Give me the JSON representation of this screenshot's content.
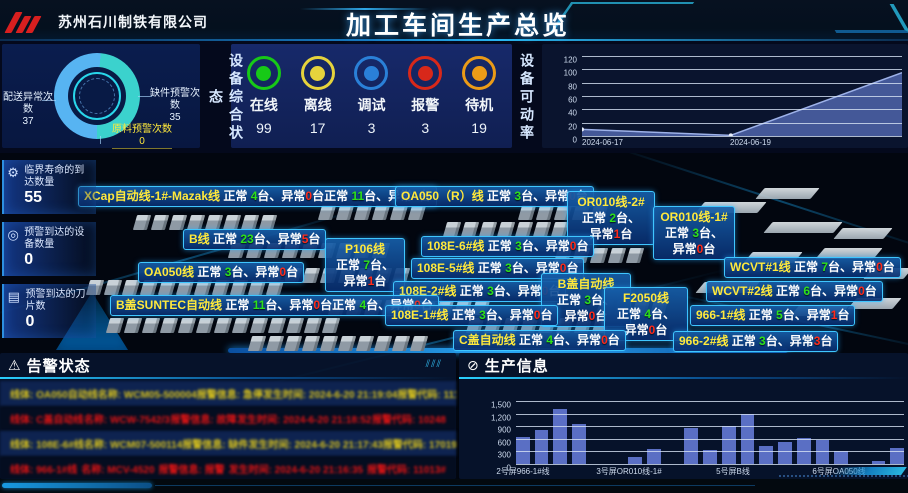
{
  "header": {
    "company": "苏州石川制铁有限公司",
    "title": "加工车间生产总览"
  },
  "equipment_status": {
    "panel_title": "设备综合状态",
    "donut": {
      "chart_data": {
        "type": "pie",
        "slices": [
          {
            "label": "配送异常次数",
            "value": 37,
            "color": "#57b4f2"
          },
          {
            "label": "缺件预警次数",
            "value": 35,
            "color": "#3bd2cd"
          },
          {
            "label": "原料预警次数",
            "value": 0,
            "color": "#ffe93c"
          }
        ]
      },
      "left_label": "配送异常次数",
      "left_value": 37,
      "right_label": "缺件预警次数",
      "right_value": 35,
      "bottom_label": "原料预警次数",
      "bottom_value": 0
    },
    "statuses": [
      {
        "id": "online",
        "label": "在线",
        "value": 99,
        "color": "#17c917"
      },
      {
        "id": "offline",
        "label": "离线",
        "value": 17,
        "color": "#e6d33c"
      },
      {
        "id": "debug",
        "label": "调试",
        "value": 3,
        "color": "#2a80d8"
      },
      {
        "id": "alarm",
        "label": "报警",
        "value": 3,
        "color": "#d8281a"
      },
      {
        "id": "standby",
        "label": "待机",
        "value": 19,
        "color": "#eb9b17"
      }
    ]
  },
  "availability": {
    "panel_title": "设备可动率",
    "chart_data": {
      "type": "area",
      "x_ticks": [
        "2024-06-17",
        "2024-06-19"
      ],
      "points": [
        {
          "x": "2024-06-17",
          "y": 10
        },
        {
          "x": "2024-06-19",
          "y": 1
        },
        {
          "x": "",
          "y": 95
        }
      ],
      "y_ticks": [
        "0",
        "20",
        "40",
        "60",
        "80",
        "100",
        "120"
      ],
      "ylim": [
        0,
        120
      ],
      "line_color": "#9db1e8",
      "fill_color": "#4a5fa8"
    }
  },
  "left_stats": [
    {
      "label": "临界寿命的到达数量",
      "value": 55,
      "icon": "gear-icon"
    },
    {
      "label": "预警到达的设备数量",
      "value": 0,
      "icon": "target-icon"
    },
    {
      "label": "预警到达的刀片数",
      "value": 0,
      "icon": "layers-icon"
    }
  ],
  "factory": {
    "normal_label": "正常",
    "abnormal_label": "异常",
    "unit": "台",
    "sep": "、",
    "lines": [
      {
        "id": "xcap",
        "name": "XCap自动线-1#-Mazak线",
        "normal": 4,
        "abnormal": 0,
        "extra": {
          "normal": 11,
          "abnormal": 1
        }
      },
      {
        "id": "oa050r",
        "name": "OA050（R）线",
        "normal": 3,
        "abnormal": 0
      },
      {
        "id": "or010-2",
        "name": "OR010线-2#",
        "normal": 2,
        "abnormal": 1
      },
      {
        "id": "or010-1",
        "name": "OR010线-1#",
        "normal": 3,
        "abnormal": 0
      },
      {
        "id": "b",
        "name": "B线",
        "normal": 23,
        "abnormal": 5
      },
      {
        "id": "p106",
        "name": "P106线",
        "normal": 7,
        "abnormal": 1
      },
      {
        "id": "108e-6",
        "name": "108E-6#线",
        "normal": 3,
        "abnormal": 0
      },
      {
        "id": "108e-5",
        "name": "108E-5#线",
        "normal": 3,
        "abnormal": 0
      },
      {
        "id": "wcvt1",
        "name": "WCVT#1线",
        "normal": 7,
        "abnormal": 0
      },
      {
        "id": "oa050",
        "name": "OA050线",
        "normal": 3,
        "abnormal": 0
      },
      {
        "id": "108e-2",
        "name": "108E-2#线",
        "normal": 3,
        "abnormal": 0
      },
      {
        "id": "bgai",
        "name": "B盖自动线",
        "normal": 3,
        "abnormal": 0
      },
      {
        "id": "f2050",
        "name": "F2050线",
        "normal": 4,
        "abnormal": 0
      },
      {
        "id": "wcvt2",
        "name": "WCVT#2线",
        "normal": 6,
        "abnormal": 0
      },
      {
        "id": "bsuntec",
        "name": "B盖SUNTEC自动线",
        "normal": 11,
        "abnormal": 0,
        "extra": {
          "normal": 4,
          "abnormal": 0
        }
      },
      {
        "id": "108e-1",
        "name": "108E-1#线",
        "normal": 3,
        "abnormal": 0
      },
      {
        "id": "966-1",
        "name": "966-1#线",
        "normal": 5,
        "abnormal": 1
      },
      {
        "id": "966-2",
        "name": "966-2#线",
        "normal": 3,
        "abnormal": 3
      },
      {
        "id": "cgai",
        "name": "C盖自动线",
        "normal": 4,
        "abnormal": 0
      }
    ]
  },
  "alarms": {
    "title": "告警状态",
    "rows": [
      {
        "severity": "warning",
        "cells": [
          "线体: OA050自动线",
          "名称: WCM05-500004",
          "报警信息: 急停",
          "发生时间: 2024-6-20 21:19:04",
          "报警代码: 11100#"
        ]
      },
      {
        "severity": "error",
        "cells": [
          "线体: C盖自动线",
          "名称: WCW-7542/3",
          "报警信息: 故障",
          "发生时间: 2024-6-20 21:18:52",
          "报警代码: 10248"
        ]
      },
      {
        "severity": "warning",
        "cells": [
          "线体: 108E-6#线",
          "名称: WCM07-500114",
          "报警信息: 缺件",
          "发生时间: 2024-6-20 21:17:43",
          "报警代码: 17019#"
        ]
      },
      {
        "severity": "error",
        "cells": [
          "线体: 966-1#线",
          "名称: MCV-4520",
          "报警信息: 报警",
          "发生时间: 2024-6-20 21:16:35",
          "报警代码: 11013#"
        ]
      }
    ]
  },
  "production": {
    "title": "生产信息",
    "chart_data": {
      "type": "bar",
      "ylim": [
        0,
        1500
      ],
      "y_ticks": [
        "0",
        "300",
        "600",
        "900",
        "1,200",
        "1,500"
      ],
      "values": [
        640,
        800,
        1320,
        960,
        0,
        0,
        170,
        350,
        0,
        850,
        330,
        900,
        1190,
        440,
        530,
        610,
        570,
        320,
        0,
        60,
        370
      ],
      "x_tick_labels": [
        {
          "label": "2号屏966-1#线",
          "pos": 7
        },
        {
          "label": "3号屏OR010线-1#",
          "pos": 113
        },
        {
          "label": "5号屏B线",
          "pos": 217
        },
        {
          "label": "6号屏OA050线",
          "pos": 323
        }
      ],
      "bar_color": "#5a6fc4",
      "grid": true,
      "legend": false
    }
  }
}
